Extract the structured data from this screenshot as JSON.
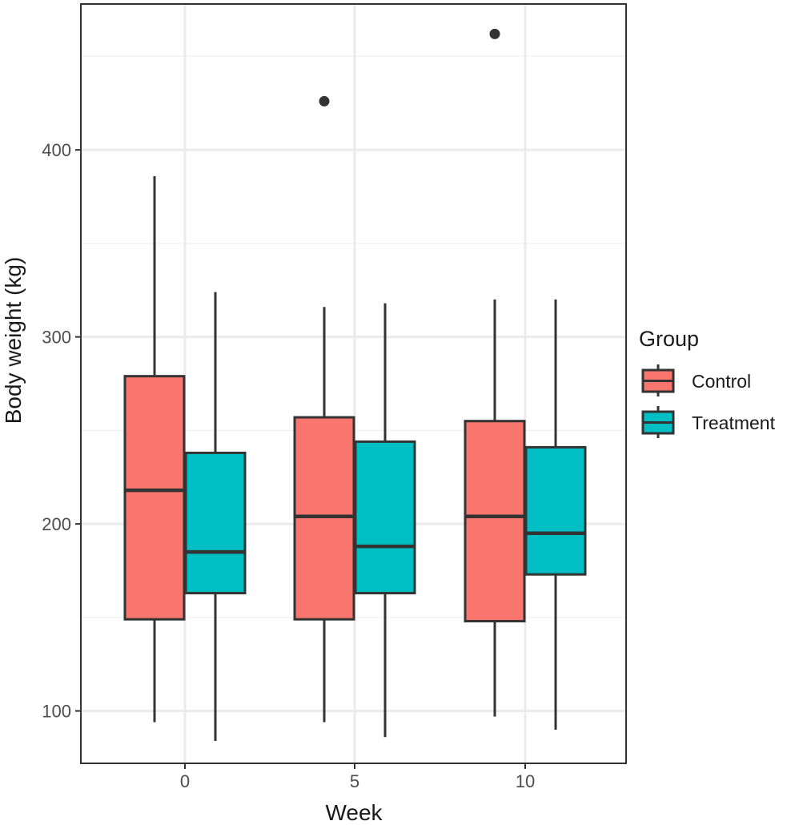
{
  "chart_data": {
    "type": "boxplot",
    "xlabel": "Week",
    "ylabel": "Body weight (kg)",
    "categories": [
      "0",
      "5",
      "10"
    ],
    "ylim": [
      72,
      478
    ],
    "y_major_ticks": [
      100,
      200,
      300,
      400
    ],
    "y_minor_gridlines": [
      150,
      250,
      350,
      450
    ],
    "grid": true,
    "legend": {
      "title": "Group",
      "position": "right"
    },
    "series": [
      {
        "name": "Control",
        "color": "#F8766D",
        "boxes": [
          {
            "week": "0",
            "whisker_low": 94,
            "q1": 149,
            "median": 218,
            "q3": 279,
            "whisker_high": 386,
            "outliers": []
          },
          {
            "week": "5",
            "whisker_low": 94,
            "q1": 149,
            "median": 204,
            "q3": 257,
            "whisker_high": 316,
            "outliers": [
              426
            ]
          },
          {
            "week": "10",
            "whisker_low": 97,
            "q1": 148,
            "median": 204,
            "q3": 255,
            "whisker_high": 320,
            "outliers": [
              462
            ]
          }
        ]
      },
      {
        "name": "Treatment",
        "color": "#00BFC4",
        "boxes": [
          {
            "week": "0",
            "whisker_low": 84,
            "q1": 163,
            "median": 185,
            "q3": 238,
            "whisker_high": 324,
            "outliers": []
          },
          {
            "week": "5",
            "whisker_low": 86,
            "q1": 163,
            "median": 188,
            "q3": 244,
            "whisker_high": 318,
            "outliers": []
          },
          {
            "week": "10",
            "whisker_low": 90,
            "q1": 173,
            "median": 195,
            "q3": 241,
            "whisker_high": 320,
            "outliers": []
          }
        ]
      }
    ]
  }
}
